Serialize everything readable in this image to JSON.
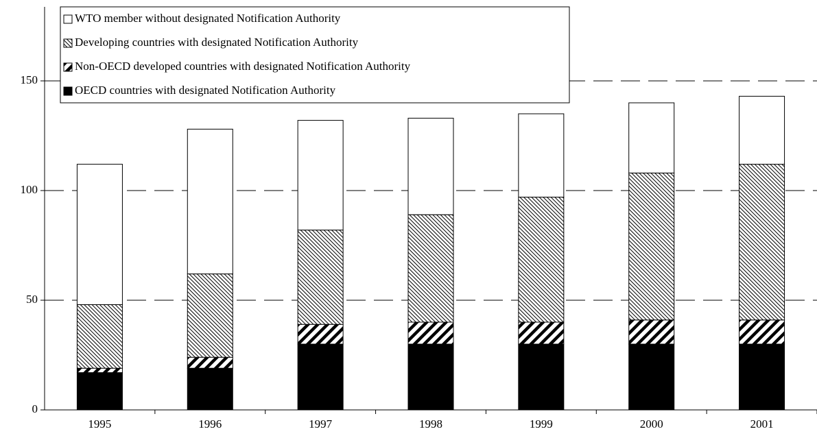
{
  "chart_data": {
    "type": "stacked_bar",
    "categories": [
      "1995",
      "1996",
      "1997",
      "1998",
      "1999",
      "2000",
      "2001"
    ],
    "series": [
      {
        "name": "OECD countries with designated Notification Authority",
        "color": "#000000",
        "pattern": "solid",
        "values": [
          17,
          19,
          30,
          30,
          30,
          30,
          30
        ]
      },
      {
        "name": "Non-OECD developed countries with designated Notification Authority",
        "color": "#000000",
        "pattern": "wide-diagonal",
        "values": [
          2,
          5,
          9,
          10,
          10,
          11,
          11
        ]
      },
      {
        "name": "Developing countries with designated Notification Authority",
        "color": "#000000",
        "pattern": "fine-diagonal",
        "values": [
          29,
          38,
          43,
          49,
          57,
          67,
          71
        ]
      },
      {
        "name": "WTO member without designated Notification Authority",
        "color": "#ffffff",
        "pattern": "solid",
        "values": [
          64,
          66,
          50,
          44,
          38,
          32,
          31
        ]
      }
    ],
    "ylim": [
      0,
      180
    ],
    "yticks": [
      0,
      50,
      100,
      150
    ],
    "grid": true,
    "legend": "top-left"
  }
}
